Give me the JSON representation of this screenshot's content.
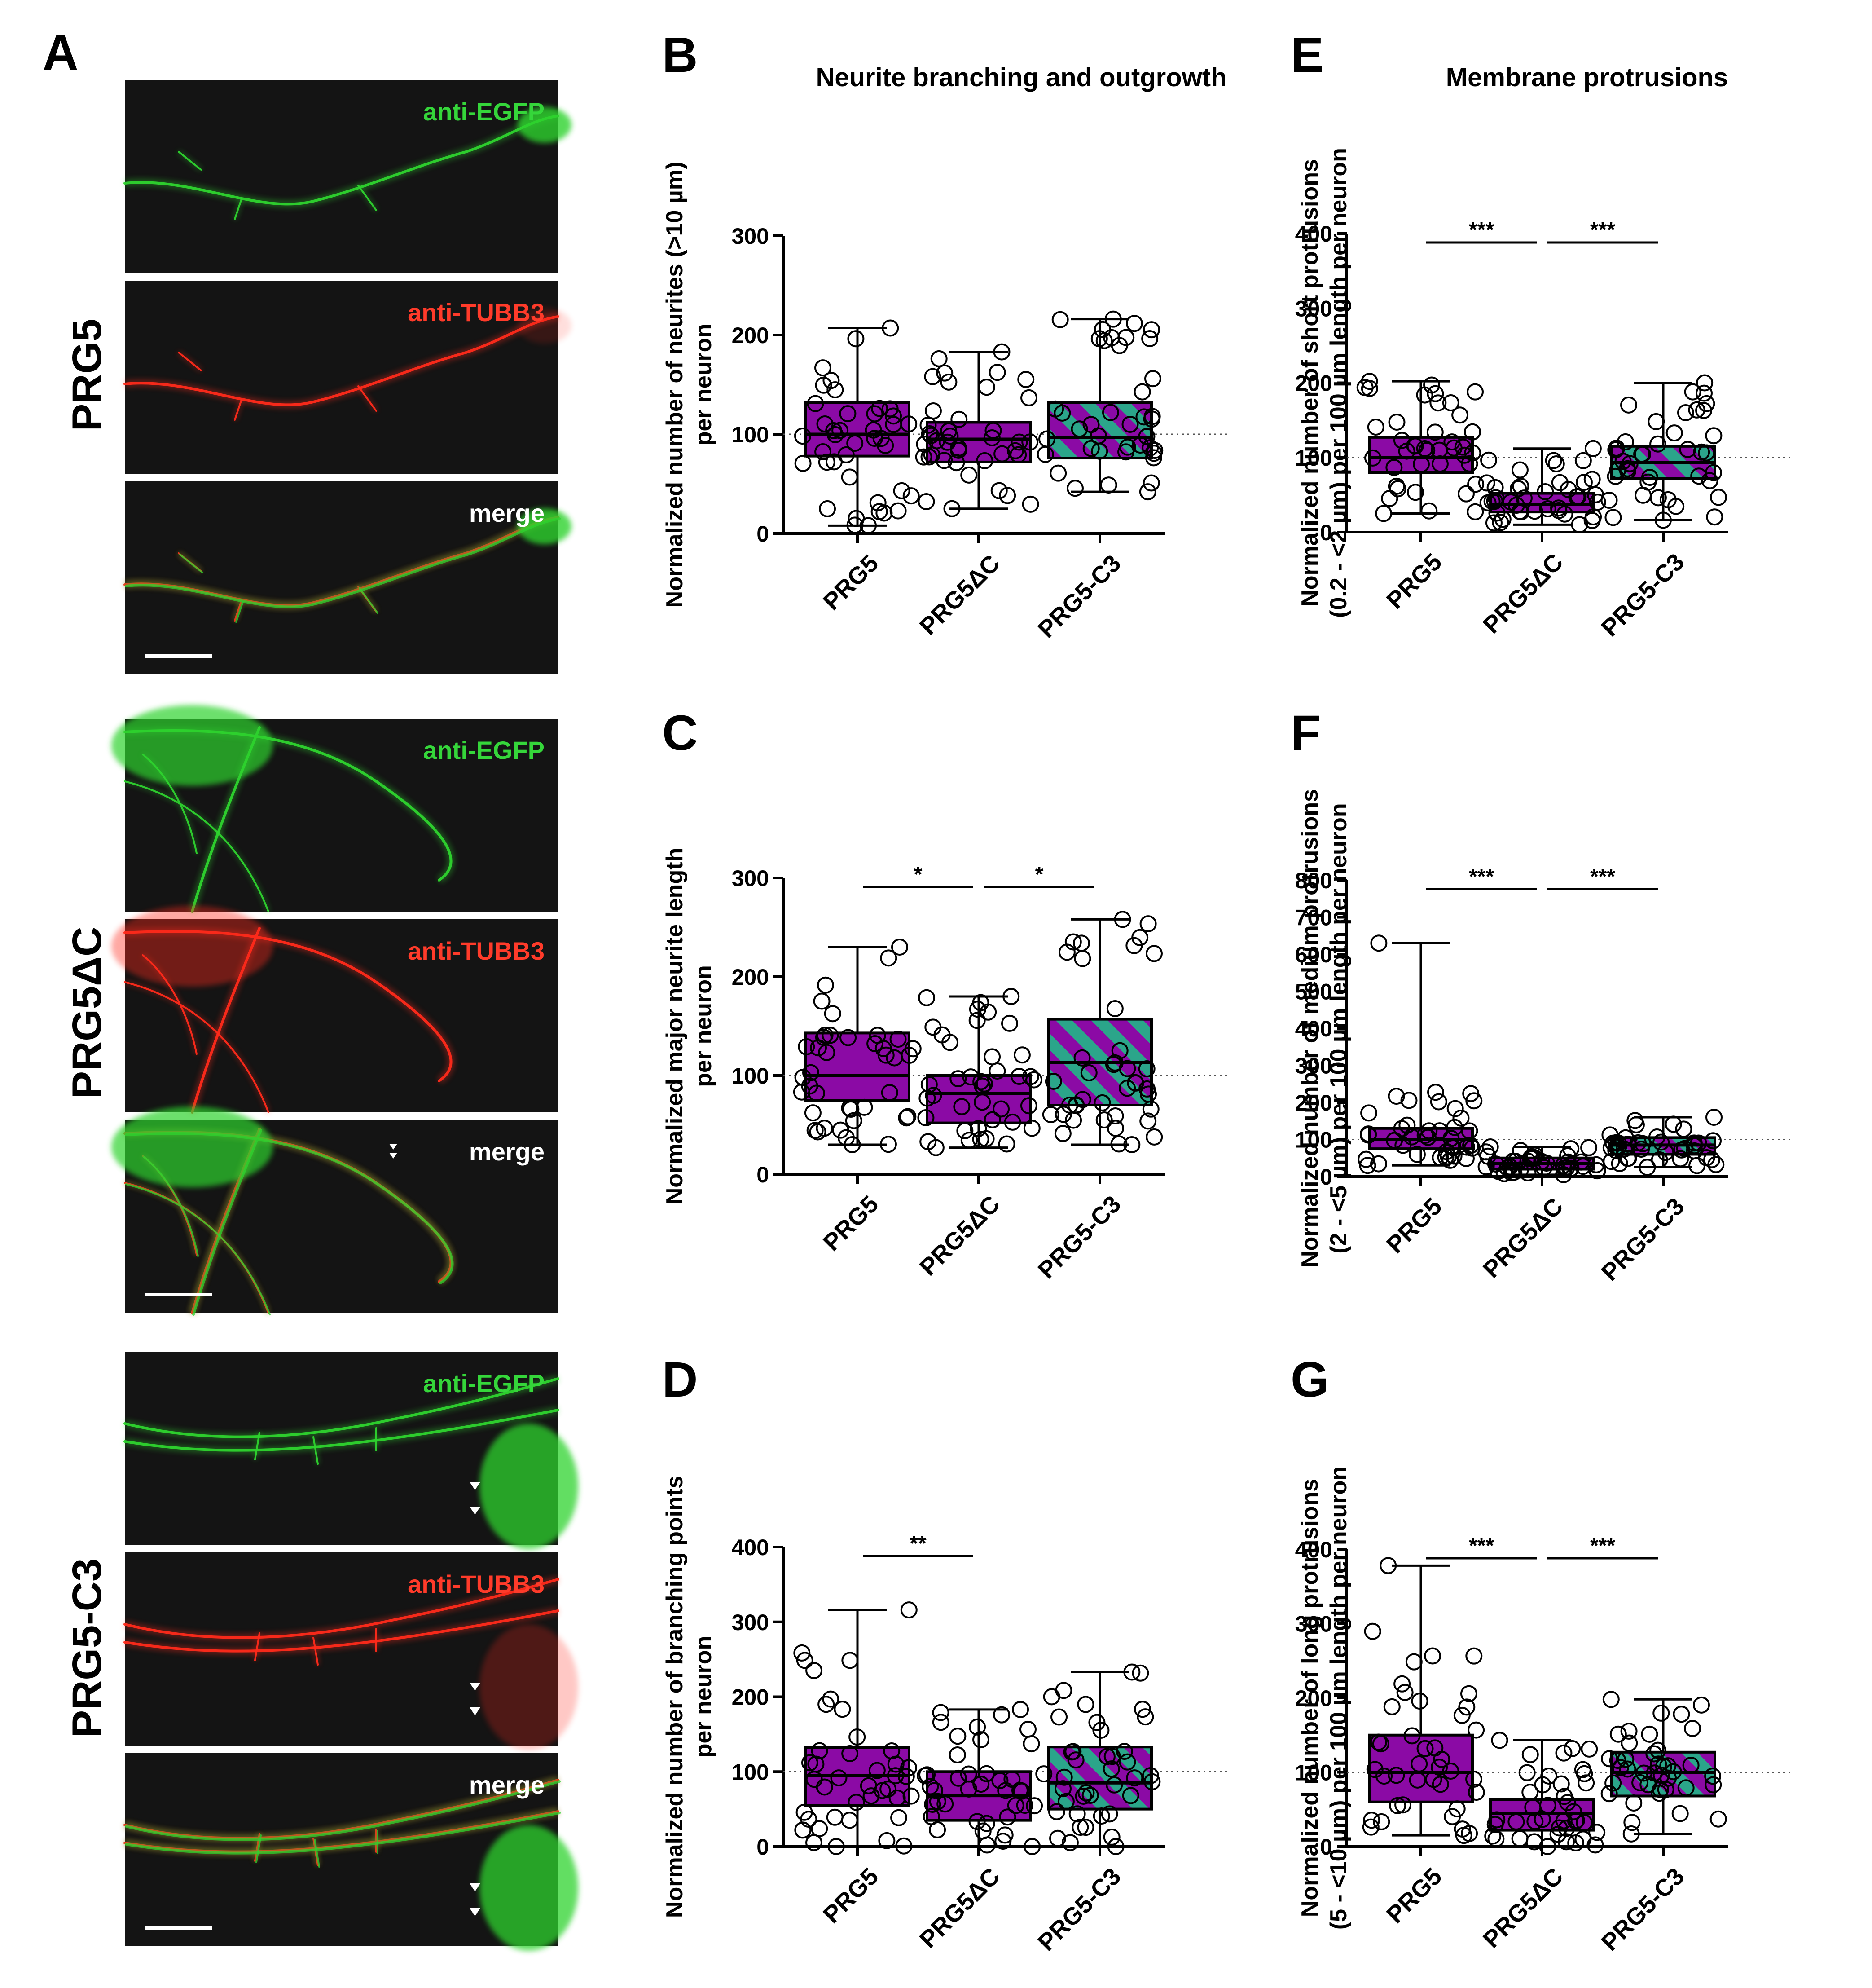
{
  "figure": {
    "colors": {
      "prg5": "#8B0AA5",
      "prg5_dc": "#8B0AA5",
      "prg5_c3_base": "#8B0AA5",
      "prg5_c3_stripe": "#2BA58A",
      "egfp": "#2ed32e",
      "tubb3": "#ff2a1a",
      "micro_bg": "#141414"
    },
    "panel_a": {
      "letter": "A",
      "conditions": [
        {
          "name": "PRG5",
          "channels": [
            {
              "label": "anti-EGFP",
              "color": "#35d63a",
              "icon": "egfp-channel-icon"
            },
            {
              "label": "anti-TUBB3",
              "color": "#ff3b2a",
              "icon": "tubb3-channel-icon"
            },
            {
              "label": "merge",
              "color": "#ffffff",
              "icon": "merge-channel-icon"
            }
          ]
        },
        {
          "name": "PRG5ΔC",
          "channels": [
            {
              "label": "anti-EGFP",
              "color": "#35d63a",
              "icon": "egfp-channel-icon"
            },
            {
              "label": "anti-TUBB3",
              "color": "#ff3b2a",
              "icon": "tubb3-channel-icon"
            },
            {
              "label": "merge",
              "color": "#ffffff",
              "icon": "merge-channel-icon"
            }
          ]
        },
        {
          "name": "PRG5-C3",
          "channels": [
            {
              "label": "anti-EGFP",
              "color": "#35d63a",
              "icon": "egfp-channel-icon"
            },
            {
              "label": "anti-TUBB3",
              "color": "#ff3b2a",
              "icon": "tubb3-channel-icon"
            },
            {
              "label": "merge",
              "color": "#ffffff",
              "icon": "merge-channel-icon"
            }
          ]
        }
      ]
    },
    "column_titles": {
      "left": "Neurite branching and outgrowth",
      "right": "Membrane protrusions"
    },
    "categories": [
      "PRG5",
      "PRG5ΔC",
      "PRG5-C3"
    ]
  },
  "chart_data": [
    {
      "letter": "B",
      "type": "box",
      "ylabel": [
        "Normalized number of neurites (>10 µm)",
        "per neuron"
      ],
      "ylim": [
        0,
        300
      ],
      "yticks": [
        "0",
        "100",
        "200",
        "300"
      ],
      "reference_line": 100,
      "categories": [
        "PRG5",
        "PRG5ΔC",
        "PRG5-C3"
      ],
      "boxes": [
        {
          "min": 8,
          "q1": 78,
          "median": 100,
          "q3": 132,
          "max": 207
        },
        {
          "min": 25,
          "q1": 72,
          "median": 95,
          "q3": 112,
          "max": 183
        },
        {
          "min": 42,
          "q1": 76,
          "median": 97,
          "q3": 132,
          "max": 216
        }
      ],
      "significance": []
    },
    {
      "letter": "C",
      "type": "box",
      "ylabel": [
        "Normalized major neurite length",
        "per neuron"
      ],
      "ylim": [
        0,
        300
      ],
      "yticks": [
        "0",
        "100",
        "200",
        "300"
      ],
      "reference_line": 100,
      "categories": [
        "PRG5",
        "PRG5ΔC",
        "PRG5-C3"
      ],
      "boxes": [
        {
          "min": 30,
          "q1": 75,
          "median": 100,
          "q3": 143,
          "max": 230
        },
        {
          "min": 27,
          "q1": 52,
          "median": 82,
          "q3": 100,
          "max": 180
        },
        {
          "min": 30,
          "q1": 70,
          "median": 113,
          "q3": 157,
          "max": 258
        }
      ],
      "significance": [
        {
          "from": 0,
          "to": 1,
          "label": "*"
        },
        {
          "from": 1,
          "to": 2,
          "label": "*"
        }
      ]
    },
    {
      "letter": "D",
      "type": "box",
      "ylabel": [
        "Normalized number of branching points",
        "per neuron"
      ],
      "ylim": [
        0,
        400
      ],
      "yticks": [
        "0",
        "100",
        "200",
        "300",
        "400"
      ],
      "reference_line": 100,
      "categories": [
        "PRG5",
        "PRG5ΔC",
        "PRG5-C3"
      ],
      "boxes": [
        {
          "min": 0,
          "q1": 55,
          "median": 95,
          "q3": 132,
          "max": 316
        },
        {
          "min": 0,
          "q1": 35,
          "median": 68,
          "q3": 100,
          "max": 183
        },
        {
          "min": 0,
          "q1": 50,
          "median": 85,
          "q3": 133,
          "max": 233
        }
      ],
      "significance": [
        {
          "from": 0,
          "to": 1,
          "label": "**"
        }
      ]
    },
    {
      "letter": "E",
      "type": "box",
      "ylabel": [
        "Normalized number of short protrusions",
        "(0.2 - <2 µm) per 100 µm length per neuron"
      ],
      "ylim": [
        0,
        400
      ],
      "yticks": [
        "0",
        "100",
        "200",
        "300",
        "400"
      ],
      "reference_line": 100,
      "categories": [
        "PRG5",
        "PRG5ΔC",
        "PRG5-C3"
      ],
      "boxes": [
        {
          "min": 25,
          "q1": 80,
          "median": 100,
          "q3": 127,
          "max": 202
        },
        {
          "min": 10,
          "q1": 27,
          "median": 37,
          "q3": 52,
          "max": 112
        },
        {
          "min": 16,
          "q1": 72,
          "median": 93,
          "q3": 115,
          "max": 200
        }
      ],
      "significance": [
        {
          "from": 0,
          "to": 1,
          "label": "***"
        },
        {
          "from": 1,
          "to": 2,
          "label": "***"
        }
      ]
    },
    {
      "letter": "F",
      "type": "box",
      "ylabel": [
        "Normalized number of medium protrusions",
        "(2 - <5 µm) per 100 µm length per neuron"
      ],
      "ylim": [
        0,
        800
      ],
      "yticks": [
        "0",
        "100",
        "200",
        "300",
        "400",
        "500",
        "600",
        "700",
        "800"
      ],
      "reference_line": 100,
      "categories": [
        "PRG5",
        "PRG5ΔC",
        "PRG5-C3"
      ],
      "boxes": [
        {
          "min": 30,
          "q1": 75,
          "median": 100,
          "q3": 130,
          "max": 630
        },
        {
          "min": 5,
          "q1": 20,
          "median": 35,
          "q3": 50,
          "max": 80
        },
        {
          "min": 25,
          "q1": 60,
          "median": 85,
          "q3": 105,
          "max": 160
        }
      ],
      "significance": [
        {
          "from": 0,
          "to": 1,
          "label": "***"
        },
        {
          "from": 1,
          "to": 2,
          "label": "***"
        }
      ]
    },
    {
      "letter": "G",
      "type": "box",
      "ylabel": [
        "Normalized number of long protrusions",
        "(5 - <10 µm) per 100 µm length per neuron"
      ],
      "ylim": [
        0,
        400
      ],
      "yticks": [
        "0",
        "100",
        "200",
        "300",
        "400"
      ],
      "reference_line": 100,
      "categories": [
        "PRG5",
        "PRG5ΔC",
        "PRG5-C3"
      ],
      "boxes": [
        {
          "min": 15,
          "q1": 60,
          "median": 100,
          "q3": 150,
          "max": 378
        },
        {
          "min": 0,
          "q1": 22,
          "median": 45,
          "q3": 63,
          "max": 143
        },
        {
          "min": 17,
          "q1": 68,
          "median": 100,
          "q3": 127,
          "max": 198
        }
      ],
      "significance": [
        {
          "from": 0,
          "to": 1,
          "label": "***"
        },
        {
          "from": 1,
          "to": 2,
          "label": "***"
        }
      ]
    }
  ]
}
